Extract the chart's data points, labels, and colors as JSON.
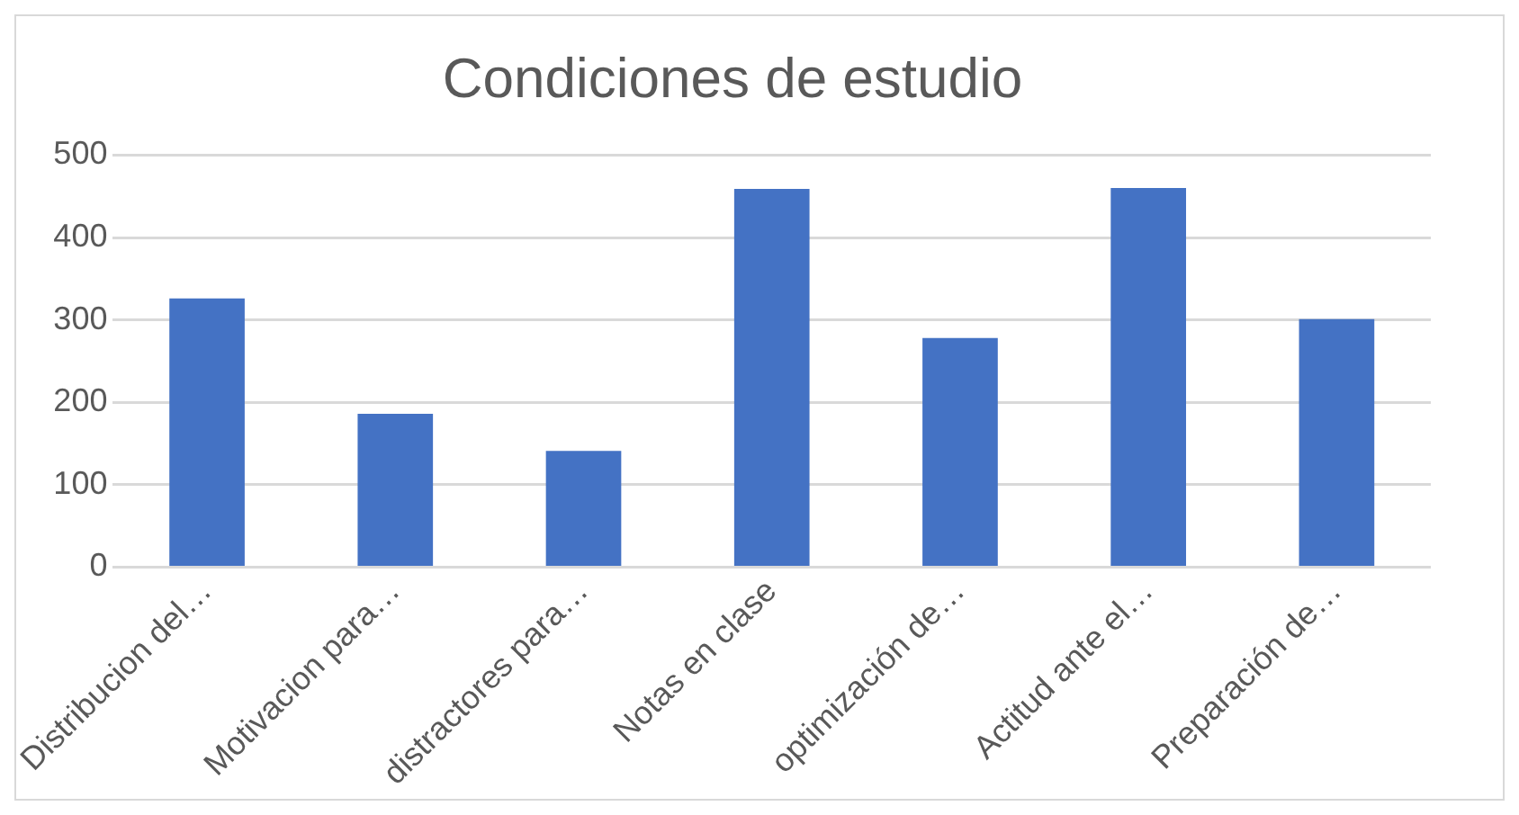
{
  "chart_data": {
    "type": "bar",
    "title": "Condiciones de estudio",
    "categories": [
      "Distribucion del…",
      "Motivacion para…",
      "distractores para…",
      "Notas en clase",
      "optimización de…",
      "Actitud ante el…",
      "Preparación de…"
    ],
    "values": [
      326,
      186,
      141,
      459,
      278,
      460,
      301
    ],
    "color": "#4472c4",
    "ylim": [
      0,
      500
    ],
    "yticks": [
      0,
      100,
      200,
      300,
      400,
      500
    ],
    "grid": "y",
    "legend": false
  }
}
